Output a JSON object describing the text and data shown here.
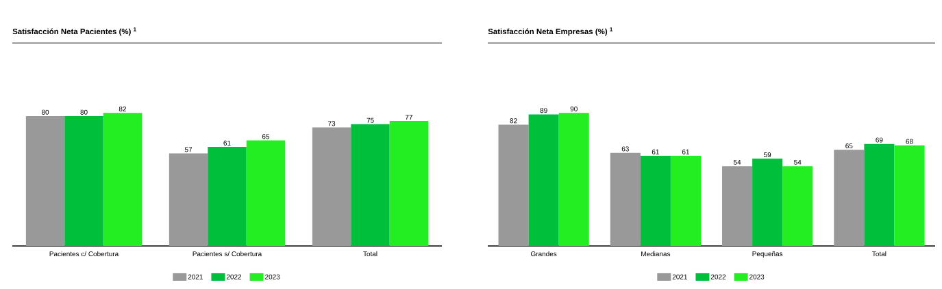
{
  "chart_data": [
    {
      "type": "bar",
      "title": "Satisfacción Neta Pacientes (%) $^{1}$",
      "categories": [
        "Pacientes c/ Cobertura",
        "Pacientes s/ Cobertura",
        "Total"
      ],
      "series": [
        {
          "name": "2021",
          "color": "#999999",
          "values": [
            80,
            57,
            73
          ]
        },
        {
          "name": "2022",
          "color": "#00bf3a",
          "values": [
            80,
            61,
            75
          ]
        },
        {
          "name": "2023",
          "color": "#22ee22",
          "values": [
            82,
            65,
            77
          ]
        }
      ],
      "data_labels": true,
      "legend": "bottom"
    },
    {
      "type": "bar",
      "title": "Satisfacción Neta Empresas (%) $^{1}$",
      "categories": [
        "Grandes",
        "Medianas",
        "Pequeñas",
        "Total"
      ],
      "series": [
        {
          "name": "2021",
          "color": "#999999",
          "values": [
            82,
            63,
            54,
            65
          ]
        },
        {
          "name": "2022",
          "color": "#00bf3a",
          "values": [
            89,
            61,
            59,
            69
          ]
        },
        {
          "name": "2023",
          "color": "#22ee22",
          "values": [
            90,
            61,
            54,
            68
          ]
        }
      ],
      "data_labels": true,
      "legend": "bottom"
    }
  ]
}
